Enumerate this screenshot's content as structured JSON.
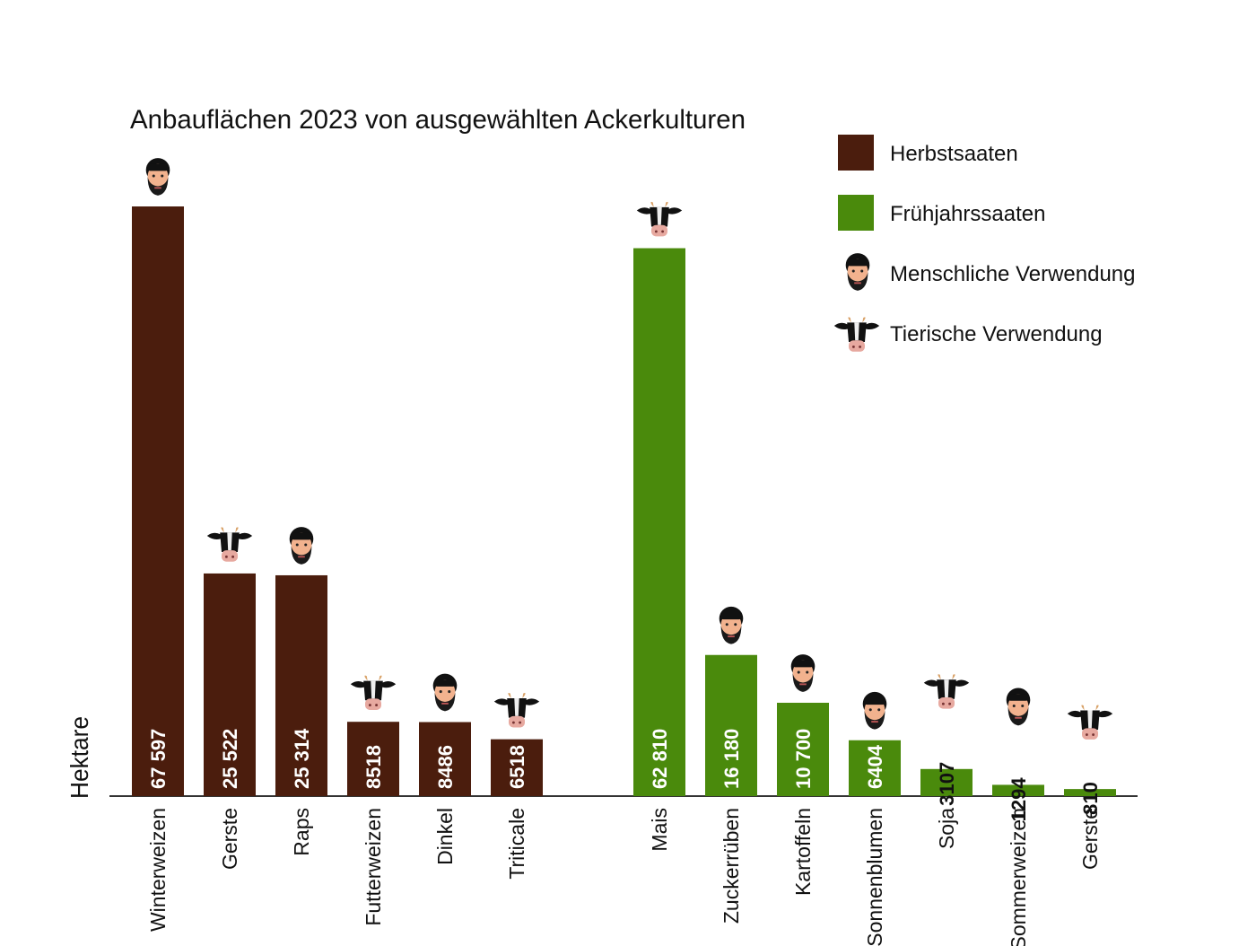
{
  "chart_data": {
    "type": "bar",
    "title": "Anbauflächen 2023 von ausgewählten Ackerkulturen",
    "ylabel": "Hektare",
    "xlabel": "",
    "ylim": [
      0,
      70000
    ],
    "grid": false,
    "legend_position": "top-right",
    "colors": {
      "Herbstsaaten": "#4b1d0d",
      "Frühjahrssaaten": "#4a8a0c"
    },
    "legend": [
      {
        "label": "Herbstsaaten",
        "kind": "swatch",
        "color": "#4b1d0d"
      },
      {
        "label": "Frühjahrssaaten",
        "kind": "swatch",
        "color": "#4a8a0c"
      },
      {
        "label": "Menschliche Verwendung",
        "kind": "icon",
        "icon": "human-face-icon"
      },
      {
        "label": "Tierische Verwendung",
        "kind": "icon",
        "icon": "cow-icon"
      }
    ],
    "groups": [
      {
        "name": "Herbstsaaten",
        "bars": [
          {
            "category": "Winterweizen",
            "value": 67597,
            "label": "67 597",
            "use": "human"
          },
          {
            "category": "Gerste",
            "value": 25522,
            "label": "25 522",
            "use": "animal"
          },
          {
            "category": "Raps",
            "value": 25314,
            "label": "25 314",
            "use": "human"
          },
          {
            "category": "Futterweizen",
            "value": 8518,
            "label": "8518",
            "use": "animal"
          },
          {
            "category": "Dinkel",
            "value": 8486,
            "label": "8486",
            "use": "human"
          },
          {
            "category": "Triticale",
            "value": 6518,
            "label": "6518",
            "use": "animal"
          }
        ]
      },
      {
        "name": "Frühjahrssaaten",
        "bars": [
          {
            "category": "Mais",
            "value": 62810,
            "label": "62 810",
            "use": "animal"
          },
          {
            "category": "Zuckerrüben",
            "value": 16180,
            "label": "16 180",
            "use": "human"
          },
          {
            "category": "Kartoffeln",
            "value": 10700,
            "label": "10 700",
            "use": "human"
          },
          {
            "category": "Sonnenblumen",
            "value": 6404,
            "label": "6404",
            "use": "human"
          },
          {
            "category": "Soja",
            "value": 3107,
            "label": "3107",
            "use": "animal"
          },
          {
            "category": "Sommerweizen",
            "value": 1294,
            "label": "1294",
            "use": "human"
          },
          {
            "category": "Gerste",
            "value": 810,
            "label": "810",
            "use": "animal"
          }
        ]
      }
    ]
  }
}
